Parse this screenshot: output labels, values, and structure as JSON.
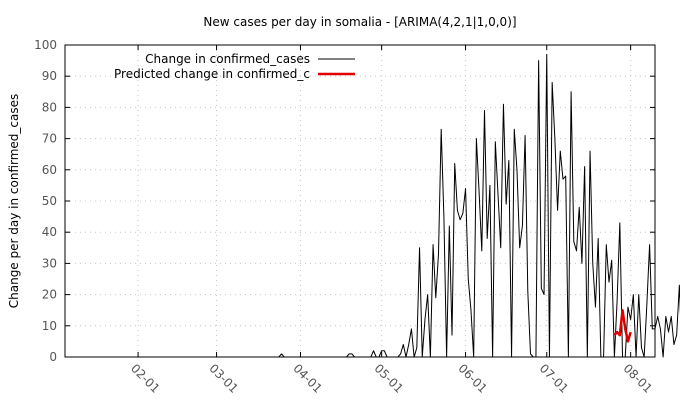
{
  "chart_data": {
    "type": "line",
    "title": "New cases per day in somalia -  [ARIMA(4,2,1|1,0,0)]",
    "xlabel": "",
    "ylabel": "Change per day in confirmed_cases",
    "ylim": [
      0,
      100
    ],
    "yticks": [
      "0",
      "10",
      "20",
      "30",
      "40",
      "50",
      "60",
      "70",
      "80",
      "90",
      "100"
    ],
    "xticks": [
      "02-01",
      "03-01",
      "04-01",
      "05-01",
      "06-01",
      "07-01",
      "08-01"
    ],
    "grid": true,
    "legend_position": "top-left",
    "colors": {
      "actual": "#000000",
      "predicted": "#e00000"
    },
    "series": [
      {
        "name": "Change in confirmed_cases",
        "values": [
          0,
          0,
          0,
          0,
          0,
          0,
          0,
          0,
          0,
          0,
          0,
          0,
          0,
          0,
          0,
          0,
          0,
          0,
          0,
          0,
          0,
          0,
          0,
          0,
          0,
          0,
          0,
          0,
          0,
          0,
          0,
          0,
          0,
          0,
          0,
          0,
          0,
          0,
          0,
          0,
          0,
          0,
          0,
          0,
          0,
          0,
          0,
          0,
          0,
          0,
          0,
          0,
          0,
          0,
          0,
          0,
          0,
          0,
          0,
          0,
          0,
          0,
          0,
          0,
          0,
          0,
          0,
          0,
          0,
          0,
          1,
          0,
          0,
          0,
          0,
          0,
          0,
          0,
          0,
          0,
          0,
          0,
          0,
          0,
          0,
          0,
          0,
          0,
          0,
          0,
          0,
          0,
          0,
          0,
          0,
          1,
          1,
          0,
          0,
          0,
          0,
          0,
          0,
          0,
          2,
          0,
          0,
          2,
          2,
          0,
          0,
          0,
          0,
          0,
          1,
          4,
          0,
          4,
          9,
          0,
          3,
          35,
          0,
          12,
          20,
          0,
          36,
          19,
          33,
          73,
          45,
          0,
          42,
          7,
          62,
          47,
          44,
          46,
          54,
          25,
          15,
          0,
          70,
          53,
          34,
          79,
          38,
          55,
          0,
          69,
          52,
          35,
          81,
          49,
          63,
          0,
          73,
          60,
          35,
          42,
          71,
          21,
          1,
          0,
          0,
          95,
          22,
          20,
          97,
          0,
          88,
          70,
          47,
          66,
          57,
          58,
          0,
          85,
          37,
          34,
          48,
          30,
          61,
          0,
          66,
          30,
          16,
          38,
          0,
          0,
          36,
          24,
          31,
          0,
          18,
          43,
          0,
          0,
          16,
          12,
          20,
          0,
          20,
          3,
          0,
          17,
          36,
          9,
          9,
          13,
          9,
          0,
          13,
          8,
          13,
          4,
          7,
          23,
          0,
          6,
          8,
          11,
          5,
          26,
          13,
          0,
          7
        ],
        "start_date": "2020-01-15"
      },
      {
        "name": "Predicted change in confirmed_c",
        "values": [
          7,
          8,
          7,
          15,
          9,
          5,
          8
        ],
        "start_date": "2020-07-26"
      }
    ]
  }
}
